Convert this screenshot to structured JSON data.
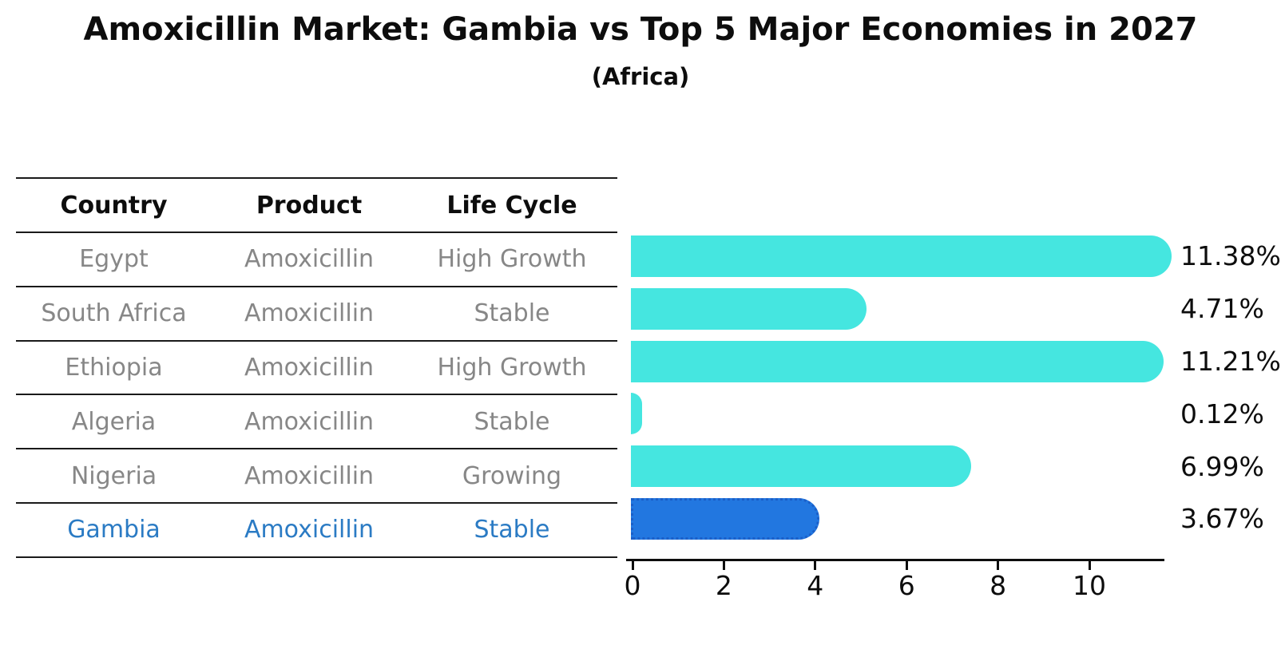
{
  "title": "Amoxicillin Market: Gambia vs Top 5 Major Economies in 2027",
  "subtitle": "(Africa)",
  "colors": {
    "bar_default": "#45e6e0",
    "bar_highlight": "#2277e0",
    "bar_highlight_border": "#1b5fc8",
    "highlight_text": "#2b7bc4",
    "table_text": "#878787",
    "axis": "#0d0d0d"
  },
  "table": {
    "headers": [
      "Country",
      "Product",
      "Life Cycle"
    ],
    "rows": [
      {
        "country": "Egypt",
        "product": "Amoxicillin",
        "life_cycle": "High Growth",
        "highlighted": false
      },
      {
        "country": "South Africa",
        "product": "Amoxicillin",
        "life_cycle": "Stable",
        "highlighted": false
      },
      {
        "country": "Ethiopia",
        "product": "Amoxicillin",
        "life_cycle": "High Growth",
        "highlighted": false
      },
      {
        "country": "Algeria",
        "product": "Amoxicillin",
        "life_cycle": "Stable",
        "highlighted": false
      },
      {
        "country": "Nigeria",
        "product": "Amoxicillin",
        "life_cycle": "Growing",
        "highlighted": false
      },
      {
        "country": "Gambia",
        "product": "Amoxicillin",
        "life_cycle": "Stable",
        "highlighted": true
      }
    ]
  },
  "chart_data": {
    "type": "bar",
    "orientation": "horizontal",
    "title": "Amoxicillin Market: Gambia vs Top 5 Major Economies in 2027",
    "subtitle": "(Africa)",
    "xlabel": "",
    "ylabel": "",
    "categories": [
      "Egypt",
      "South Africa",
      "Ethiopia",
      "Algeria",
      "Nigeria",
      "Gambia"
    ],
    "values": [
      11.38,
      4.71,
      11.21,
      0.12,
      6.99,
      3.67
    ],
    "value_labels": [
      "11.38%",
      "4.71%",
      "11.21%",
      "0.12%",
      "6.99%",
      "3.67%"
    ],
    "highlighted_category": "Gambia",
    "xticks": [
      0,
      2,
      4,
      6,
      8,
      10
    ],
    "xtick_labels": [
      "0",
      "2",
      "4",
      "6",
      "8",
      "10"
    ],
    "xlim": [
      0,
      11.7
    ],
    "grid": false,
    "legend": false
  }
}
